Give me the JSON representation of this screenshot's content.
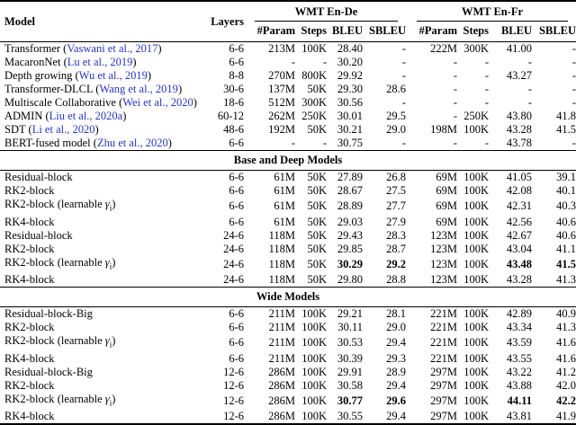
{
  "paper_table": {
    "citation_color": "#2634bf",
    "header": {
      "model": "Model",
      "layers": "Layers",
      "groups": [
        "WMT En-De",
        "WMT En-Fr"
      ],
      "subcolumns": [
        "#Param",
        "Steps",
        "BLEU",
        "SBLEU"
      ]
    },
    "gamma_label": {
      "word": "learnable",
      "symbol": "γ",
      "sub": "i"
    },
    "sections": [
      {
        "title": "",
        "rows": [
          {
            "name": "Transformer",
            "cite": "Vaswani et al., 2017",
            "gamma": false,
            "cells": [
              "6-6",
              "213M",
              "100K",
              "28.40",
              "-",
              "222M",
              "300K",
              "41.00",
              "-"
            ],
            "bold": []
          },
          {
            "name": "MacaronNet",
            "cite": "Lu et al., 2019",
            "gamma": false,
            "cells": [
              "6-6",
              "-",
              "-",
              "30.20",
              "-",
              "-",
              "-",
              "-",
              "-"
            ],
            "bold": []
          },
          {
            "name": "Depth growing",
            "cite": "Wu et al., 2019",
            "gamma": false,
            "cells": [
              "8-8",
              "270M",
              "800K",
              "29.92",
              "-",
              "-",
              "-",
              "43.27",
              "-"
            ],
            "bold": []
          },
          {
            "name": "Transformer-DLCL",
            "cite": "Wang et al., 2019",
            "gamma": false,
            "cells": [
              "30-6",
              "137M",
              "50K",
              "29.30",
              "28.6",
              "-",
              "-",
              "-",
              "-"
            ],
            "bold": []
          },
          {
            "name": "Multiscale Collaborative",
            "cite": "Wei et al., 2020",
            "gamma": false,
            "cells": [
              "18-6",
              "512M",
              "300K",
              "30.56",
              "-",
              "-",
              "-",
              "-",
              "-"
            ],
            "bold": []
          },
          {
            "name": "ADMIN",
            "cite": "Liu et al., 2020a",
            "gamma": false,
            "cells": [
              "60-12",
              "262M",
              "250K",
              "30.01",
              "29.5",
              "-",
              "250K",
              "43.80",
              "41.8"
            ],
            "bold": []
          },
          {
            "name": "SDT",
            "cite": "Li et al., 2020",
            "gamma": false,
            "cells": [
              "48-6",
              "192M",
              "50K",
              "30.21",
              "29.0",
              "198M",
              "100K",
              "43.28",
              "41.5"
            ],
            "bold": []
          },
          {
            "name": "BERT-fused model",
            "cite": "Zhu et al., 2020",
            "gamma": false,
            "cells": [
              "6-6",
              "-",
              "-",
              "30.75",
              "-",
              "-",
              "-",
              "43.78",
              "-"
            ],
            "bold": []
          }
        ]
      },
      {
        "title": "Base and Deep Models",
        "rows": [
          {
            "name": "Residual-block",
            "cite": "",
            "gamma": false,
            "cells": [
              "6-6",
              "61M",
              "50K",
              "27.89",
              "26.8",
              "69M",
              "100K",
              "41.05",
              "39.1"
            ],
            "bold": []
          },
          {
            "name": "RK2-block",
            "cite": "",
            "gamma": false,
            "cells": [
              "6-6",
              "61M",
              "50K",
              "28.67",
              "27.5",
              "69M",
              "100K",
              "42.08",
              "40.1"
            ],
            "bold": []
          },
          {
            "name": "RK2-block",
            "cite": "",
            "gamma": true,
            "cells": [
              "6-6",
              "61M",
              "50K",
              "28.89",
              "27.7",
              "69M",
              "100K",
              "42.31",
              "40.3"
            ],
            "bold": []
          },
          {
            "name": "RK4-block",
            "cite": "",
            "gamma": false,
            "cells": [
              "6-6",
              "61M",
              "50K",
              "29.03",
              "27.9",
              "69M",
              "100K",
              "42.56",
              "40.6"
            ],
            "bold": []
          },
          {
            "name": "Residual-block",
            "cite": "",
            "gamma": false,
            "cells": [
              "24-6",
              "118M",
              "50K",
              "29.43",
              "28.3",
              "123M",
              "100K",
              "42.67",
              "40.6"
            ],
            "bold": []
          },
          {
            "name": "RK2-block",
            "cite": "",
            "gamma": false,
            "cells": [
              "24-6",
              "118M",
              "50K",
              "29.85",
              "28.7",
              "123M",
              "100K",
              "43.04",
              "41.1"
            ],
            "bold": []
          },
          {
            "name": "RK2-block",
            "cite": "",
            "gamma": true,
            "cells": [
              "24-6",
              "118M",
              "50K",
              "30.29",
              "29.2",
              "123M",
              "100K",
              "43.48",
              "41.5"
            ],
            "bold": [
              3,
              4,
              7,
              8
            ]
          },
          {
            "name": "RK4-block",
            "cite": "",
            "gamma": false,
            "cells": [
              "24-6",
              "118M",
              "50K",
              "29.80",
              "28.8",
              "123M",
              "100K",
              "43.28",
              "41.3"
            ],
            "bold": []
          }
        ]
      },
      {
        "title": "Wide Models",
        "rows": [
          {
            "name": "Residual-block-Big",
            "cite": "",
            "gamma": false,
            "cells": [
              "6-6",
              "211M",
              "100K",
              "29.21",
              "28.1",
              "221M",
              "100K",
              "42.89",
              "40.9"
            ],
            "bold": []
          },
          {
            "name": "RK2-block",
            "cite": "",
            "gamma": false,
            "cells": [
              "6-6",
              "211M",
              "100K",
              "30.11",
              "29.0",
              "221M",
              "100K",
              "43.34",
              "41.3"
            ],
            "bold": []
          },
          {
            "name": "RK2-block",
            "cite": "",
            "gamma": true,
            "cells": [
              "6-6",
              "211M",
              "100K",
              "30.53",
              "29.4",
              "221M",
              "100K",
              "43.59",
              "41.6"
            ],
            "bold": []
          },
          {
            "name": "RK4-block",
            "cite": "",
            "gamma": false,
            "cells": [
              "6-6",
              "211M",
              "100K",
              "30.39",
              "29.3",
              "221M",
              "100K",
              "43.55",
              "41.6"
            ],
            "bold": []
          },
          {
            "name": "Residual-block-Big",
            "cite": "",
            "gamma": false,
            "cells": [
              "12-6",
              "286M",
              "100K",
              "29.91",
              "28.9",
              "297M",
              "100K",
              "43.22",
              "41.2"
            ],
            "bold": []
          },
          {
            "name": "RK2-block",
            "cite": "",
            "gamma": false,
            "cells": [
              "12-6",
              "286M",
              "100K",
              "30.58",
              "29.4",
              "297M",
              "100K",
              "43.88",
              "42.0"
            ],
            "bold": []
          },
          {
            "name": "RK2-block",
            "cite": "",
            "gamma": true,
            "cells": [
              "12-6",
              "286M",
              "100K",
              "30.77",
              "29.6",
              "297M",
              "100K",
              "44.11",
              "42.2"
            ],
            "bold": [
              3,
              4,
              7,
              8
            ]
          },
          {
            "name": "RK4-block",
            "cite": "",
            "gamma": false,
            "cells": [
              "12-6",
              "286M",
              "100K",
              "30.55",
              "29.4",
              "297M",
              "100K",
              "43.81",
              "41.9"
            ],
            "bold": []
          }
        ]
      }
    ]
  }
}
